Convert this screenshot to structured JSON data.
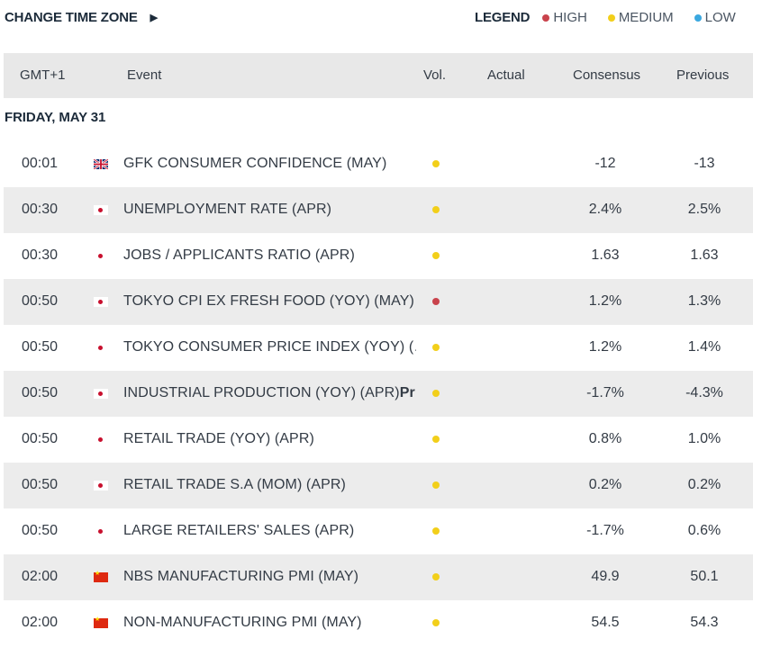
{
  "header": {
    "change_tz_label": "CHANGE TIME ZONE",
    "legend_title": "LEGEND",
    "legend": [
      {
        "label": "HIGH",
        "color": "#c9434c"
      },
      {
        "label": "MEDIUM",
        "color": "#f2cf1a"
      },
      {
        "label": "LOW",
        "color": "#3ba8e0"
      }
    ]
  },
  "columns": {
    "time": "GMT+1",
    "event": "Event",
    "vol": "Vol.",
    "actual": "Actual",
    "consensus": "Consensus",
    "previous": "Previous"
  },
  "day": "FRIDAY, MAY 31",
  "events": [
    {
      "time": "00:01",
      "flag": "gb-flag-icon",
      "event": "GFK CONSUMER CONFIDENCE (MAY)",
      "vol": "medium",
      "actual": "",
      "consensus": "-12",
      "previous": "-13"
    },
    {
      "time": "00:30",
      "flag": "jp-flag-icon",
      "event": "UNEMPLOYMENT RATE (APR)",
      "vol": "medium",
      "actual": "",
      "consensus": "2.4%",
      "previous": "2.5%"
    },
    {
      "time": "00:30",
      "flag": "jp-flag-icon",
      "event": "JOBS / APPLICANTS RATIO (APR)",
      "vol": "medium",
      "actual": "",
      "consensus": "1.63",
      "previous": "1.63"
    },
    {
      "time": "00:50",
      "flag": "jp-flag-icon",
      "event": "TOKYO CPI EX FRESH FOOD (YOY) (MAY)",
      "vol": "high",
      "actual": "",
      "consensus": "1.2%",
      "previous": "1.3%"
    },
    {
      "time": "00:50",
      "flag": "jp-flag-icon",
      "event": "TOKYO CONSUMER PRICE INDEX (YOY) (…",
      "vol": "medium",
      "actual": "",
      "consensus": "1.2%",
      "previous": "1.4%"
    },
    {
      "time": "00:50",
      "flag": "jp-flag-icon",
      "event": "INDUSTRIAL PRODUCTION (YOY) (APR)",
      "event_suffix": "Pr…",
      "vol": "medium",
      "actual": "",
      "consensus": "-1.7%",
      "previous": "-4.3%"
    },
    {
      "time": "00:50",
      "flag": "jp-flag-icon",
      "event": "RETAIL TRADE (YOY) (APR)",
      "vol": "medium",
      "actual": "",
      "consensus": "0.8%",
      "previous": "1.0%"
    },
    {
      "time": "00:50",
      "flag": "jp-flag-icon",
      "event": "RETAIL TRADE S.A (MOM) (APR)",
      "vol": "medium",
      "actual": "",
      "consensus": "0.2%",
      "previous": "0.2%"
    },
    {
      "time": "00:50",
      "flag": "jp-flag-icon",
      "event": "LARGE RETAILERS' SALES (APR)",
      "vol": "medium",
      "actual": "",
      "consensus": "-1.7%",
      "previous": "0.6%"
    },
    {
      "time": "02:00",
      "flag": "cn-flag-icon",
      "event": "NBS MANUFACTURING PMI (MAY)",
      "vol": "medium",
      "actual": "",
      "consensus": "49.9",
      "previous": "50.1"
    },
    {
      "time": "02:00",
      "flag": "cn-flag-icon",
      "event": "NON-MANUFACTURING PMI (MAY)",
      "vol": "medium",
      "actual": "",
      "consensus": "54.5",
      "previous": "54.3"
    }
  ]
}
